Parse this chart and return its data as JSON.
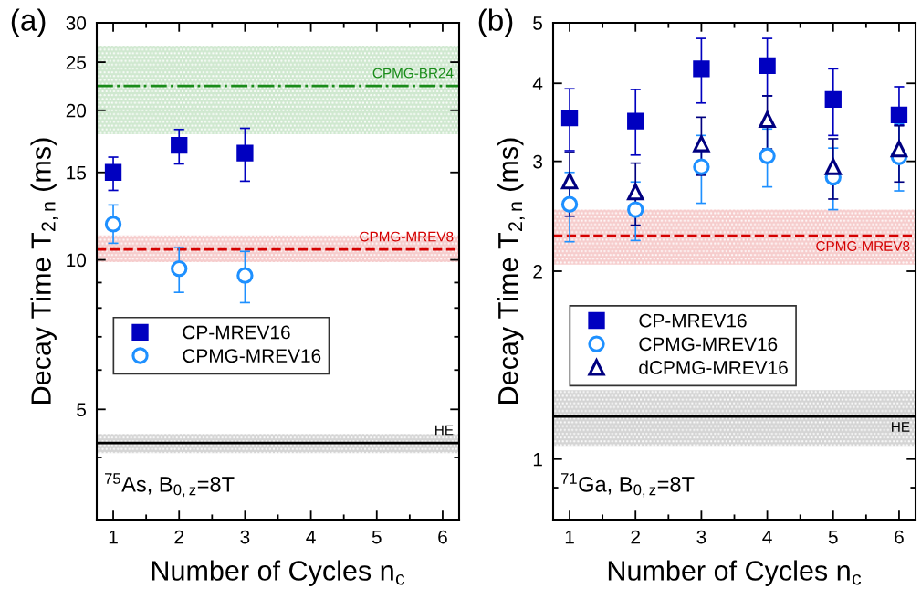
{
  "chart_data": [
    {
      "type": "scatter",
      "title": "(a)",
      "xlabel": "Number of Cycles n$_{c}$",
      "ylabel": "Decay Time T$_{2,n}$ (ms)",
      "x": [
        1,
        2,
        3
      ],
      "xlim": [
        0.75,
        6.25
      ],
      "xticks": [
        1,
        2,
        3,
        4,
        5,
        6
      ],
      "log": "y",
      "ylim": [
        3,
        30
      ],
      "yticks": [
        5,
        10,
        15,
        20,
        25,
        30
      ],
      "grid": false,
      "legend": "center left",
      "annotations": [
        "$^{75}$As, B$_{0,z}$=8T"
      ],
      "series": [
        {
          "name": "CP-MREV16",
          "color": "#0000c0",
          "marker": "square",
          "values": [
            15.0,
            17.0,
            16.4
          ],
          "errors": [
            [
              13.8,
              16.1
            ],
            [
              15.6,
              18.3
            ],
            [
              14.4,
              18.4
            ]
          ]
        },
        {
          "name": "CPMG-MREV16",
          "color": "#1e90ff",
          "marker": "circle",
          "values": [
            11.8,
            9.6,
            9.3
          ],
          "errors": [
            [
              10.8,
              12.9
            ],
            [
              8.6,
              10.6
            ],
            [
              8.2,
              10.4
            ]
          ]
        }
      ],
      "ref_lines": [
        {
          "axis": "y",
          "value": 22.4,
          "label": "CPMG-BR24",
          "color": "#1a8c1a",
          "line_style": "dashdot"
        },
        {
          "axis": "y",
          "value": 10.5,
          "label": "CPMG-MREV8",
          "color": "#d40000",
          "line_style": "dashed"
        },
        {
          "axis": "y",
          "value": 4.28,
          "label": "HE",
          "color": "#000000",
          "line_style": "solid"
        }
      ],
      "bands": [
        {
          "axis": "y",
          "from": 17.9,
          "to": 27.0,
          "color": "#cfe8cf"
        },
        {
          "axis": "y",
          "from": 9.9,
          "to": 11.2,
          "color": "#f6cccc"
        },
        {
          "axis": "y",
          "from": 4.08,
          "to": 4.46,
          "color": "#d4d4d4"
        }
      ]
    },
    {
      "type": "scatter",
      "title": "(b)",
      "xlabel": "Number of Cycles n$_{c}$",
      "ylabel": "Decay Time T$_{2,n}$ (ms)",
      "x": [
        1,
        2,
        3,
        4,
        5,
        6
      ],
      "xlim": [
        0.75,
        6.25
      ],
      "xticks": [
        1,
        2,
        3,
        4,
        5,
        6
      ],
      "log": "y",
      "ylim": [
        0.8,
        5
      ],
      "yticks": [
        1,
        2,
        3,
        4,
        5
      ],
      "grid": false,
      "legend": "center left",
      "annotations": [
        "$^{71}$Ga, B$_{0,z}$=8T"
      ],
      "series": [
        {
          "name": "CP-MREV16",
          "color": "#0000c0",
          "marker": "square",
          "values": [
            3.52,
            3.48,
            4.22,
            4.27,
            3.77,
            3.56
          ],
          "errors": [
            [
              3.12,
              3.92
            ],
            [
              3.07,
              3.91
            ],
            [
              3.72,
              4.72
            ],
            [
              3.82,
              4.72
            ],
            [
              3.3,
              4.22
            ],
            [
              3.43,
              3.95
            ]
          ]
        },
        {
          "name": "CPMG-MREV16",
          "color": "#1e90ff",
          "marker": "circle",
          "values": [
            2.56,
            2.51,
            2.94,
            3.06,
            2.83,
            3.05
          ],
          "errors": [
            [
              2.23,
              2.88
            ],
            [
              2.24,
              2.78
            ],
            [
              2.57,
              3.3
            ],
            [
              2.73,
              3.38
            ],
            [
              2.51,
              3.15
            ],
            [
              2.69,
              3.45
            ]
          ]
        },
        {
          "name": "dCPMG-MREV16",
          "color": "#000080",
          "marker": "triangle",
          "values": [
            2.79,
            2.68,
            3.2,
            3.5,
            2.94,
            3.14
          ],
          "errors": [
            [
              2.45,
              3.1
            ],
            [
              2.37,
              2.98
            ],
            [
              2.85,
              3.53
            ],
            [
              3.14,
              3.82
            ],
            [
              2.61,
              3.26
            ],
            [
              2.78,
              3.42
            ]
          ]
        }
      ],
      "ref_lines": [
        {
          "axis": "y",
          "value": 2.28,
          "label": "CPMG-MREV8",
          "color": "#d40000",
          "line_style": "dashed"
        },
        {
          "axis": "y",
          "value": 1.17,
          "label": "HE",
          "color": "#000000",
          "line_style": "solid"
        }
      ],
      "bands": [
        {
          "axis": "y",
          "from": 2.05,
          "to": 2.51,
          "color": "#f6cccc"
        },
        {
          "axis": "y",
          "from": 1.05,
          "to": 1.29,
          "color": "#d4d4d4"
        }
      ]
    }
  ]
}
